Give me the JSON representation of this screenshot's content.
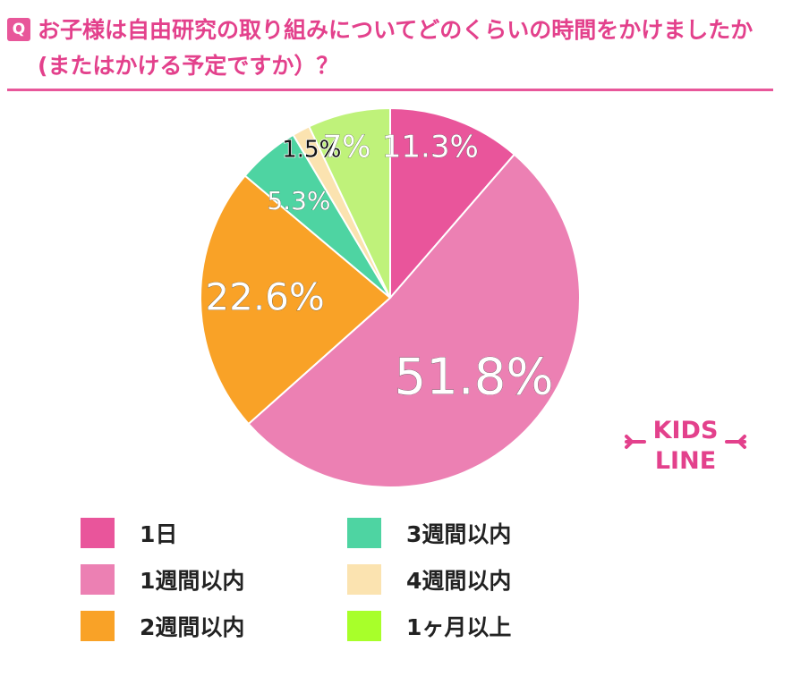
{
  "header": {
    "badge": "Q",
    "title": "お子様は自由研究の取り組みについてどのくらいの時間をかけましたか(またはかける予定ですか）？"
  },
  "logo": {
    "line1": "KIDS",
    "line2": "LINE"
  },
  "chart_data": {
    "type": "pie",
    "title": "お子様は自由研究の取り組みについてどのくらいの時間をかけましたか(またはかける予定ですか）？",
    "categories": [
      "1日",
      "1週間以内",
      "2週間以内",
      "3週間以内",
      "4週間以内",
      "1ヶ月以上"
    ],
    "values": [
      11.3,
      51.8,
      22.6,
      5.3,
      1.5,
      7
    ],
    "value_labels": [
      "11.3%",
      "51.8%",
      "22.6%",
      "5.3%",
      "1.5%",
      "7%"
    ],
    "colors": [
      "#e9559b",
      "#ec80b3",
      "#f9a227",
      "#4ed4a2",
      "#fbe3b0",
      "#bff27a"
    ],
    "legend_colors": [
      "#e9559b",
      "#ec80b3",
      "#f9a227",
      "#4ed4a2",
      "#fbe3b0",
      "#a8ff2a"
    ],
    "start": "12 o'clock",
    "direction": "clockwise",
    "legend_position": "bottom"
  }
}
